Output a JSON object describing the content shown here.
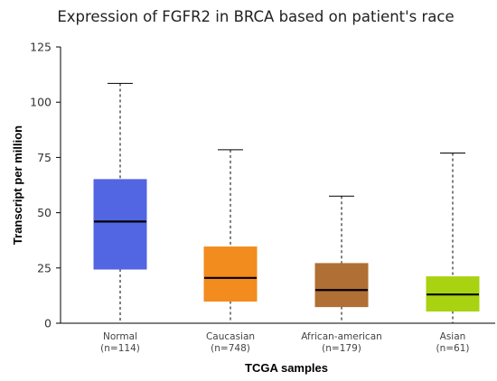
{
  "chart_data": {
    "type": "box",
    "title": "Expression of FGFR2 in BRCA based on patient's race",
    "xlabel": "TCGA samples",
    "ylabel": "Transcript per million",
    "ylim": [
      0,
      125
    ],
    "yticks": [
      0,
      25,
      50,
      75,
      100,
      125
    ],
    "grid": false,
    "categories": [
      {
        "name": "Normal",
        "n_label": "(n=114)",
        "color": "#5266e3",
        "min": 0,
        "q1": 24.5,
        "median": 46,
        "q3": 65,
        "max": 108.5
      },
      {
        "name": "Caucasian",
        "n_label": "(n=748)",
        "color": "#f28c1e",
        "min": 0,
        "q1": 10,
        "median": 20.5,
        "q3": 34.5,
        "max": 78.5
      },
      {
        "name": "African-american",
        "n_label": "(n=179)",
        "color": "#b06f34",
        "min": 0,
        "q1": 7.5,
        "median": 15,
        "q3": 27,
        "max": 57.5
      },
      {
        "name": "Asian",
        "n_label": "(n=61)",
        "color": "#a9d211",
        "min": 0,
        "q1": 5.5,
        "median": 13,
        "q3": 21,
        "max": 77
      }
    ]
  }
}
